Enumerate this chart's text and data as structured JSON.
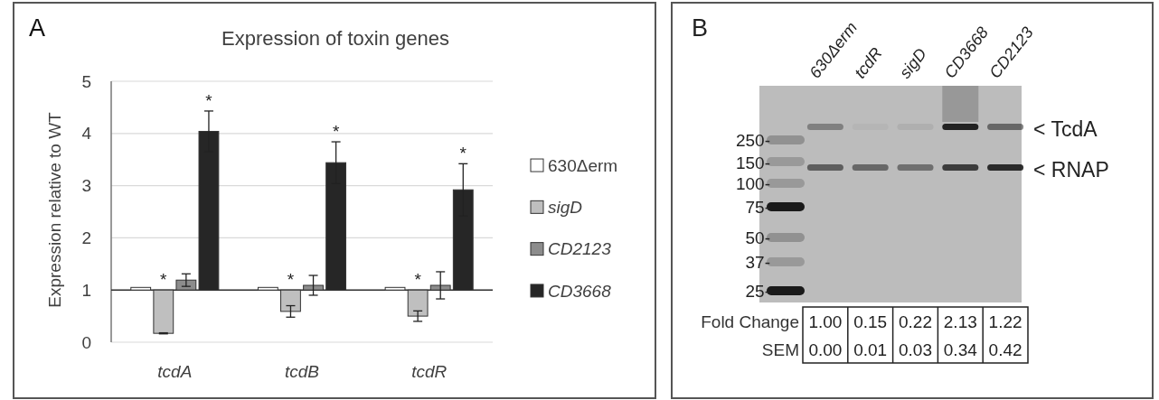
{
  "chart_data": [
    {
      "type": "bar",
      "title": "Expression of toxin genes",
      "ylabel": "Expression relative to WT",
      "annotations": [
        "A"
      ],
      "categories": [
        "tcdA",
        "tcdB",
        "tcdR"
      ],
      "series": [
        {
          "name": "630Δerm",
          "color": "#ffffff",
          "values": [
            0.05,
            0.05,
            0.05
          ],
          "base": [
            1,
            1,
            1
          ]
        },
        {
          "name": "sigD",
          "color": "#bfbfbf",
          "values": [
            -0.83,
            -0.41,
            -0.5
          ],
          "base": [
            1,
            1,
            1
          ],
          "errors": [
            0.01,
            0.11,
            0.1
          ],
          "value_labels": [
            "*",
            "*",
            "*"
          ]
        },
        {
          "name": "CD2123",
          "color": "#8c8c8c",
          "values": [
            0.19,
            0.09,
            0.09
          ],
          "base": [
            1,
            1,
            1
          ],
          "errors": [
            0.12,
            0.19,
            0.26
          ]
        },
        {
          "name": "CD3668",
          "color": "#262626",
          "values": [
            3.04,
            2.44,
            1.92
          ],
          "base": [
            1,
            1,
            1
          ],
          "errors": [
            0.39,
            0.4,
            0.5
          ],
          "value_labels": [
            "*",
            "*",
            "*"
          ]
        }
      ],
      "ylim": [
        0,
        5
      ],
      "yticks": [
        0,
        1,
        2,
        3,
        4,
        5
      ],
      "grid": "y",
      "legend": "right",
      "ref_lines": [
        {
          "axis": "y",
          "value": 1,
          "color": "#333333"
        }
      ]
    },
    {
      "type": "other",
      "annotations": [
        "B",
        "250-",
        "150-",
        "100-",
        "75-",
        "50-",
        "37-",
        "25-",
        "< TcdA",
        "< RNAP"
      ],
      "categories": [
        "630Δerm",
        "tcdR",
        "sigD",
        "CD3668",
        "CD2123"
      ],
      "series": [
        {
          "name": "Fold Change",
          "values": [
            1.0,
            0.15,
            0.22,
            2.13,
            1.22
          ],
          "value_labels": [
            "1.00",
            "0.15",
            "0.22",
            "2.13",
            "1.22"
          ]
        },
        {
          "name": "SEM",
          "values": [
            0.0,
            0.01,
            0.03,
            0.34,
            0.42
          ],
          "value_labels": [
            "0.00",
            "0.01",
            "0.03",
            "0.34",
            "0.42"
          ]
        }
      ]
    }
  ]
}
